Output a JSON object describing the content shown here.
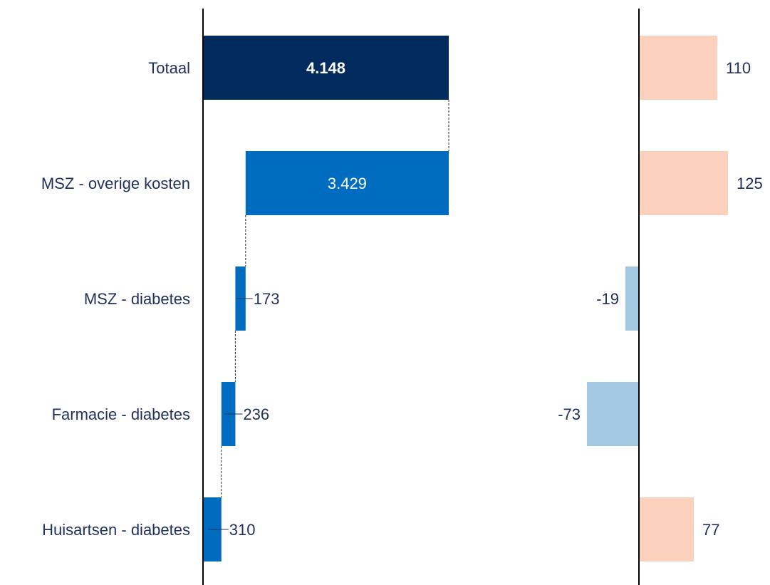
{
  "chart_data": [
    {
      "type": "bar",
      "subtype": "waterfall",
      "orientation": "horizontal",
      "categories": [
        "Totaal",
        "MSZ - overige kosten",
        "MSZ - diabetes",
        "Farmacie - diabetes",
        "Huisartsen - diabetes"
      ],
      "values": [
        4148,
        3429,
        173,
        236,
        310
      ],
      "value_labels": [
        "4.148",
        "3.429",
        "173",
        "236",
        "310"
      ],
      "highlight_category": "Totaal",
      "xlim": [
        0,
        4148
      ],
      "colors": {
        "total": "#002b5c",
        "component": "#006cbf",
        "connector": "#333333"
      }
    },
    {
      "type": "bar",
      "orientation": "horizontal",
      "categories": [
        "Totaal",
        "MSZ - overige kosten",
        "MSZ - diabetes",
        "Farmacie - diabetes",
        "Huisartsen - diabetes"
      ],
      "values": [
        110,
        125,
        -19,
        -73,
        77
      ],
      "value_labels": [
        "110",
        "125",
        "-19",
        "-73",
        "77"
      ],
      "colors": {
        "positive": "#fbd0bd",
        "negative": "#a3c8e2"
      }
    }
  ],
  "colors": {
    "text": "#1f2f5e",
    "axis": "#000000"
  }
}
